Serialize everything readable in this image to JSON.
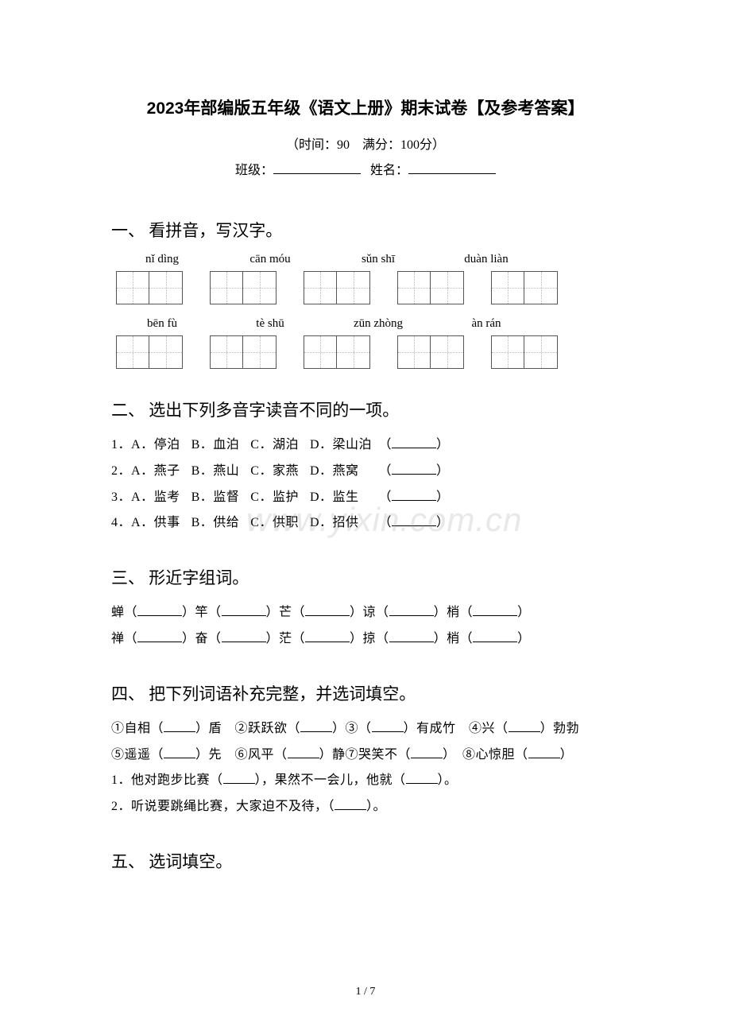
{
  "title": "2023年部编版五年级《语文上册》期末试卷【及参考答案】",
  "meta": "（时间：90　满分：100分）",
  "class_label": "班级：",
  "name_label": "姓名：",
  "sections": {
    "s1": {
      "heading": "一、 看拼音，写汉字。",
      "row1": [
        "nǐ dìng",
        "cān móu",
        "sǔn shī",
        "duàn liàn"
      ],
      "row2": [
        "bēn fù",
        "tè shū",
        "zūn zhòng",
        "àn rán"
      ]
    },
    "s2": {
      "heading": "二、 选出下列多音字读音不同的一项。",
      "q1": {
        "n": "1．",
        "a": "A．停泊",
        "b": "B．血泊",
        "c": "C．湖泊",
        "d": "D．梁山泊"
      },
      "q2": {
        "n": "2．",
        "a": "A．燕子",
        "b": "B．燕山",
        "c": "C．家燕",
        "d": "D．燕窝"
      },
      "q3": {
        "n": "3．",
        "a": "A．监考",
        "b": "B．监督",
        "c": "C．监护",
        "d": "D．监生"
      },
      "q4": {
        "n": "4．",
        "a": "A．供事",
        "b": "B．供给",
        "c": "C．供职",
        "d": "D．招供"
      }
    },
    "s3": {
      "heading": "三、 形近字组词。",
      "line1": [
        "蝉（",
        "）竿（",
        "）芒（",
        "）谅（",
        "）梢（",
        "）"
      ],
      "line2": [
        "禅（",
        "）奋（",
        "）茫（",
        "）掠（",
        "）梢（",
        "）"
      ]
    },
    "s4": {
      "heading": "四、 把下列词语补充完整，并选词填空。",
      "l1a": "①自相（",
      "l1b": "）盾　②跃跃欲（",
      "l1c": "）③（",
      "l1d": "）有成竹　④兴（",
      "l1e": "）勃勃",
      "l2a": "⑤遥遥（",
      "l2b": "）先　⑥风平（",
      "l2c": "）静⑦哭笑不（",
      "l2d": "）　⑧心惊胆（",
      "l2e": "）",
      "l3a": "1．他对跑步比赛（",
      "l3b": "），果然不一会儿，他就（",
      "l3c": "）。",
      "l4a": "2．听说要跳绳比赛，大家迫不及待，（",
      "l4b": "）。"
    },
    "s5": {
      "heading": "五、 选词填空。"
    }
  },
  "footer": "1 / 7",
  "watermark": "www.yixin.com.cn",
  "colors": {
    "text": "#000000",
    "bg": "#ffffff",
    "box_border": "#555555",
    "box_dotted": "#bbbbbb",
    "watermark": "rgba(150,150,150,0.22)"
  }
}
